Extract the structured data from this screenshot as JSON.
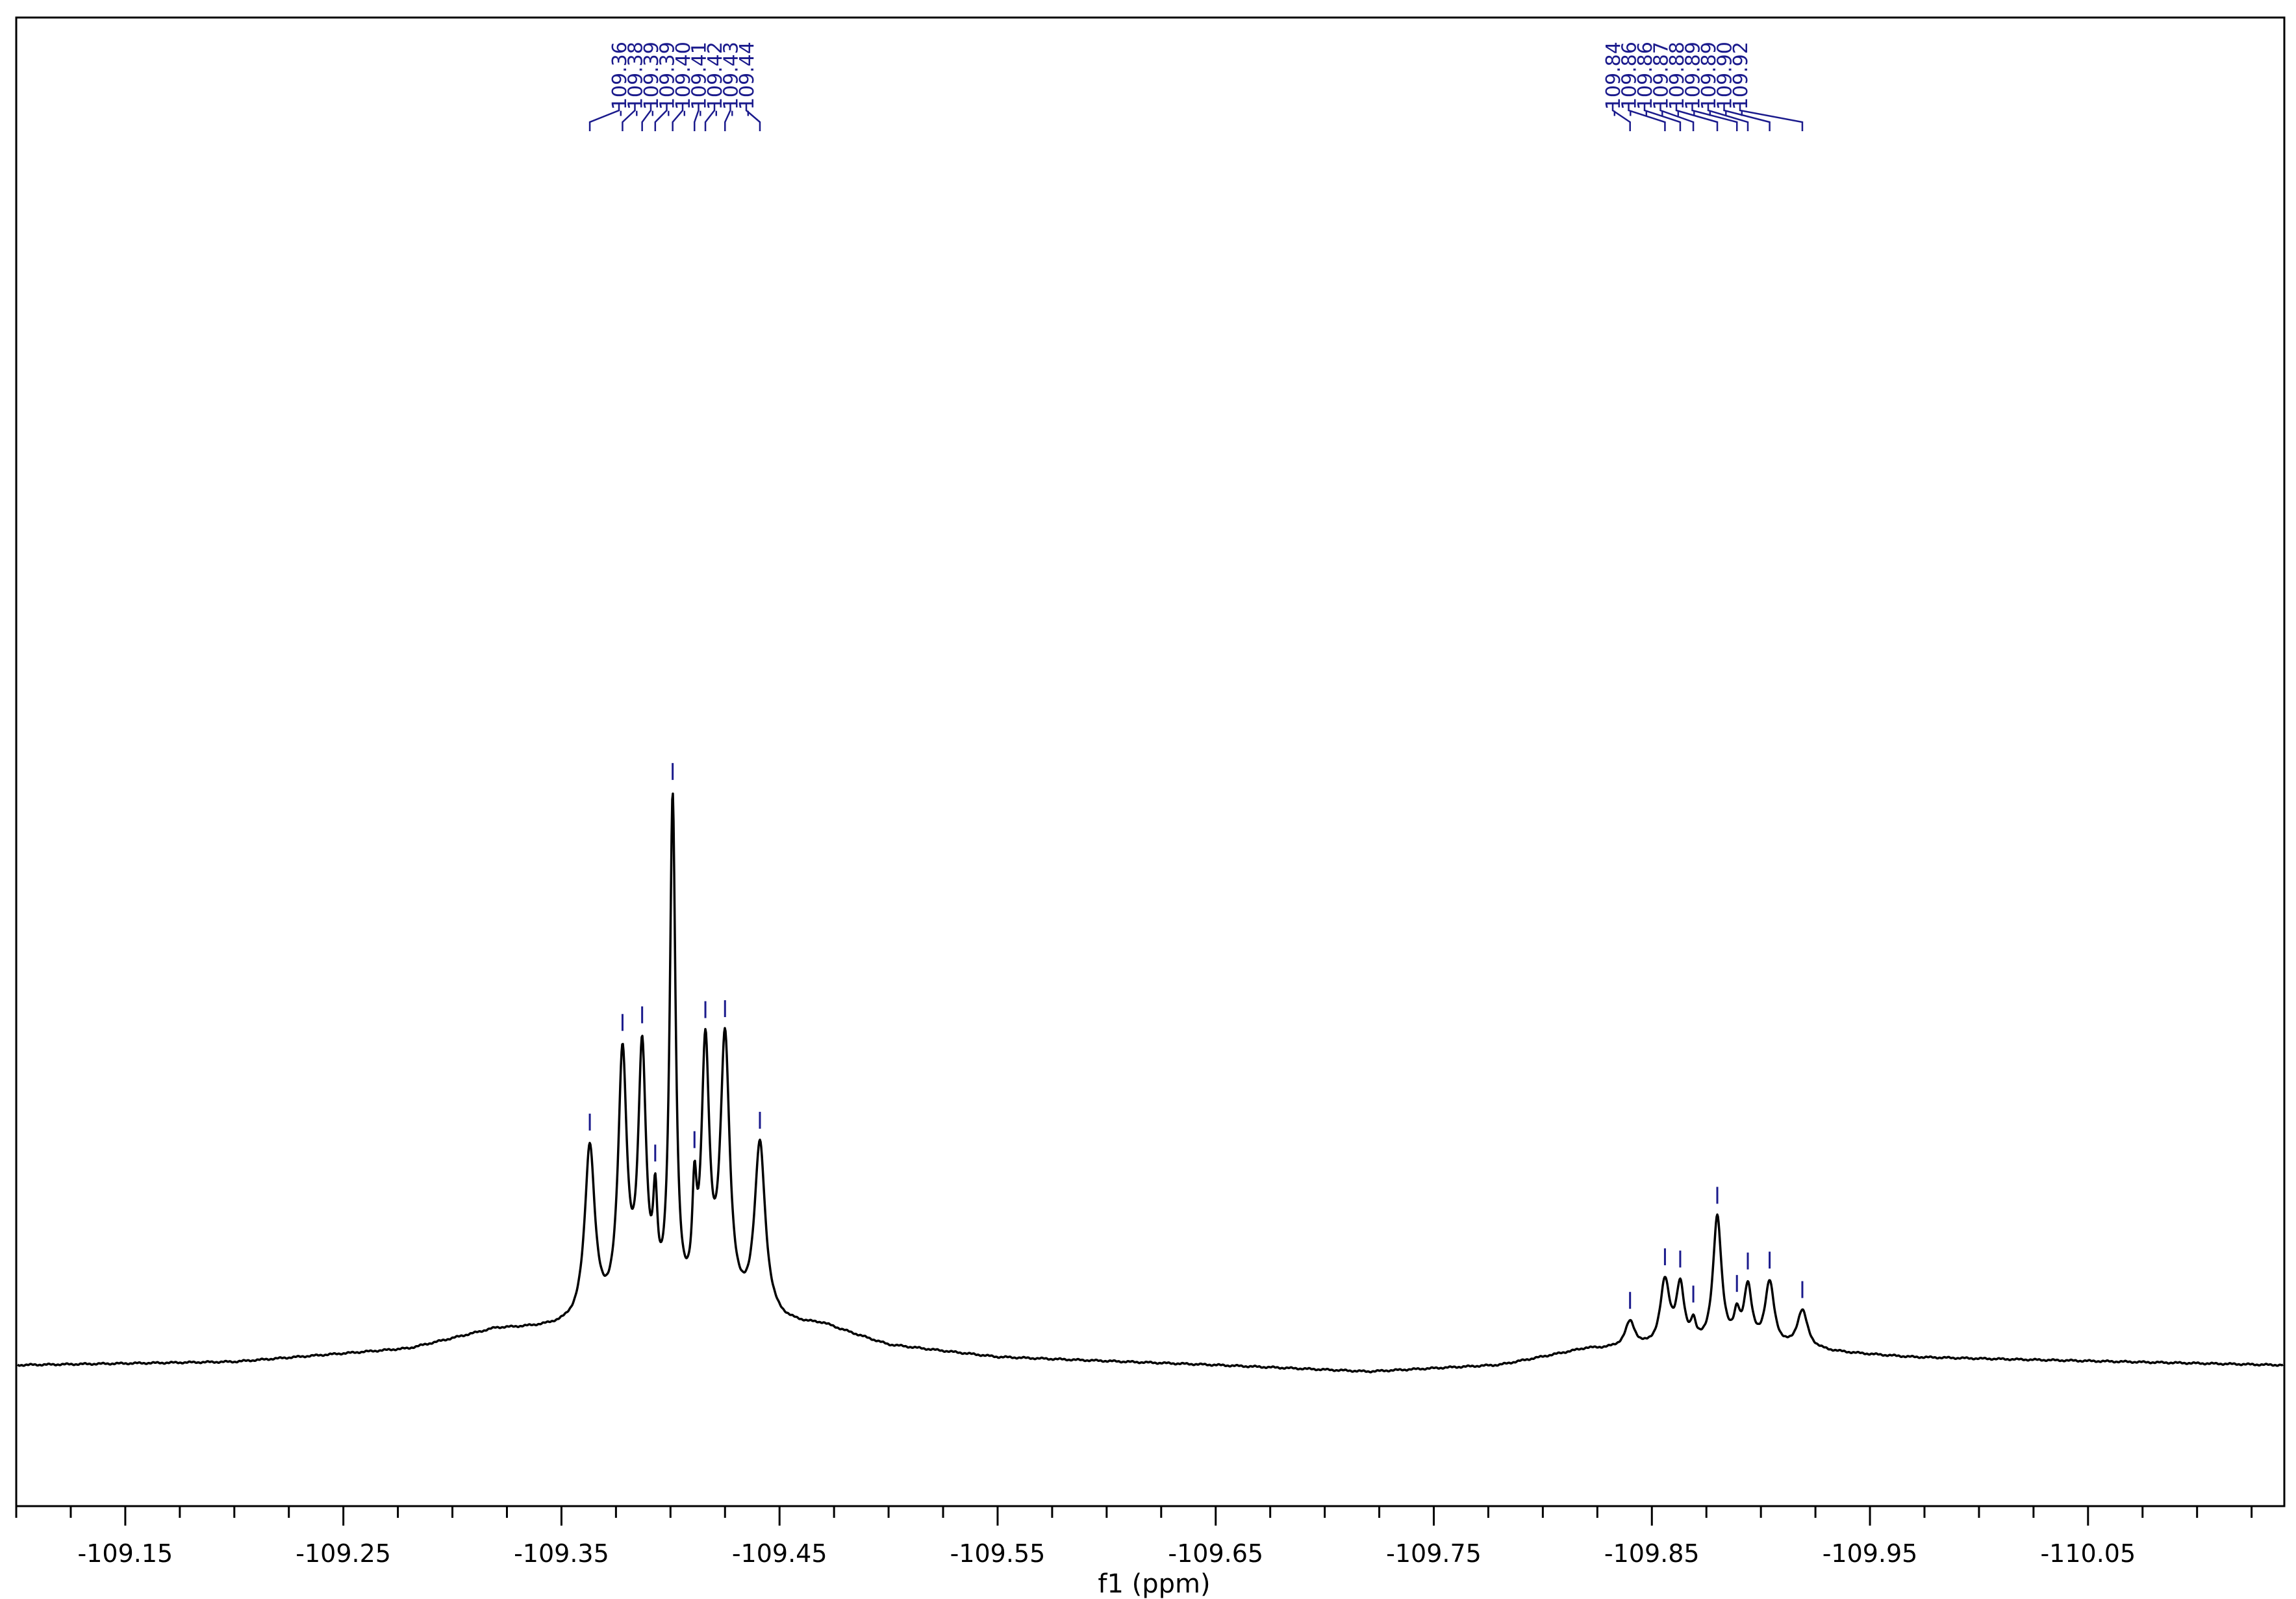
{
  "chart_data": {
    "type": "line",
    "xlabel": "f1 (ppm)",
    "ylabel": "",
    "title": "",
    "xlim": [
      -109.1,
      -110.14
    ],
    "x_reversed": true,
    "grid": false,
    "colors": {
      "spectrum": "#000000",
      "peak_labels": "#1a1a8c",
      "frame": "#000000"
    },
    "x_ticks": [
      -109.15,
      -109.25,
      -109.35,
      -109.45,
      -109.55,
      -109.65,
      -109.75,
      -109.85,
      -109.95,
      -110.05
    ],
    "x_tick_labels": [
      "-109.15",
      "-109.25",
      "-109.35",
      "-109.45",
      "-109.55",
      "-109.65",
      "-109.75",
      "-109.85",
      "-109.95",
      "-110.05"
    ],
    "peak_labels": [
      {
        "label": "-109.36",
        "x": -109.363
      },
      {
        "label": "-109.38",
        "x": -109.378
      },
      {
        "label": "-109.39",
        "x": -109.387
      },
      {
        "label": "-109.39",
        "x": -109.393
      },
      {
        "label": "-109.40",
        "x": -109.401
      },
      {
        "label": "-109.41",
        "x": -109.411
      },
      {
        "label": "-109.42",
        "x": -109.416
      },
      {
        "label": "-109.43",
        "x": -109.425
      },
      {
        "label": "-109.44",
        "x": -109.441
      },
      {
        "label": "-109.84",
        "x": -109.84
      },
      {
        "label": "-109.86",
        "x": -109.856
      },
      {
        "label": "-109.86",
        "x": -109.863
      },
      {
        "label": "-109.87",
        "x": -109.869
      },
      {
        "label": "-109.88",
        "x": -109.88
      },
      {
        "label": "-109.89",
        "x": -109.889
      },
      {
        "label": "-109.89",
        "x": -109.894
      },
      {
        "label": "-109.90",
        "x": -109.904
      },
      {
        "label": "-109.92",
        "x": -109.919
      }
    ],
    "series": [
      {
        "baseline_points": [
          [
            -109.1,
            0.0
          ],
          [
            -109.2,
            0.005
          ],
          [
            -109.28,
            0.025
          ],
          [
            -109.32,
            0.055
          ],
          [
            -109.47,
            0.06
          ],
          [
            -109.5,
            0.03
          ],
          [
            -109.55,
            0.012
          ],
          [
            -109.65,
            0.0
          ],
          [
            -109.72,
            -0.01
          ],
          [
            -109.78,
            0.0
          ],
          [
            -109.82,
            0.025
          ],
          [
            -109.93,
            0.02
          ],
          [
            -109.97,
            0.012
          ],
          [
            -110.14,
            0.0
          ]
        ],
        "peaks": [
          {
            "x": -109.363,
            "height": 0.27,
            "width": 0.0028
          },
          {
            "x": -109.378,
            "height": 0.4,
            "width": 0.0024
          },
          {
            "x": -109.387,
            "height": 0.4,
            "width": 0.0022
          },
          {
            "x": -109.393,
            "height": 0.14,
            "width": 0.0012
          },
          {
            "x": -109.401,
            "height": 0.79,
            "width": 0.0016
          },
          {
            "x": -109.411,
            "height": 0.15,
            "width": 0.0012
          },
          {
            "x": -109.416,
            "height": 0.4,
            "width": 0.0022
          },
          {
            "x": -109.425,
            "height": 0.42,
            "width": 0.0026
          },
          {
            "x": -109.441,
            "height": 0.27,
            "width": 0.003
          },
          {
            "x": -109.84,
            "height": 0.04,
            "width": 0.0028
          },
          {
            "x": -109.856,
            "height": 0.1,
            "width": 0.0026
          },
          {
            "x": -109.863,
            "height": 0.09,
            "width": 0.0022
          },
          {
            "x": -109.869,
            "height": 0.03,
            "width": 0.0014
          },
          {
            "x": -109.88,
            "height": 0.2,
            "width": 0.0024
          },
          {
            "x": -109.889,
            "height": 0.04,
            "width": 0.0016
          },
          {
            "x": -109.894,
            "height": 0.09,
            "width": 0.0022
          },
          {
            "x": -109.904,
            "height": 0.1,
            "width": 0.0026
          },
          {
            "x": -109.919,
            "height": 0.06,
            "width": 0.003
          }
        ]
      }
    ]
  }
}
